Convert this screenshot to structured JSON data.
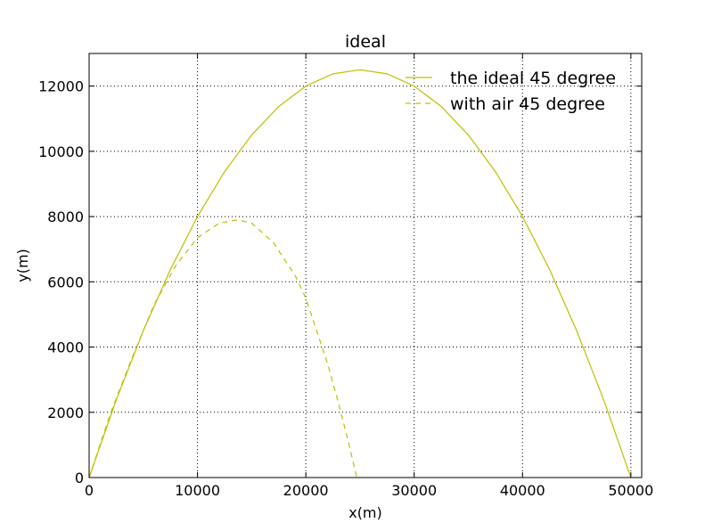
{
  "chart_data": {
    "type": "line",
    "title": "ideal",
    "xlabel": "x(m)",
    "ylabel": "y(m)",
    "xlim": [
      0,
      51000
    ],
    "ylim": [
      0,
      13000
    ],
    "xticks": [
      0,
      10000,
      20000,
      30000,
      40000,
      50000
    ],
    "yticks": [
      0,
      2000,
      4000,
      6000,
      8000,
      10000,
      12000
    ],
    "grid": true,
    "legend_position": "top-right",
    "series": [
      {
        "name": "the ideal 45 degree",
        "style": "solid",
        "color": "#bfbf00",
        "x": [
          0,
          2500,
          5000,
          7500,
          10000,
          12500,
          15000,
          17500,
          20000,
          22500,
          25000,
          27500,
          30000,
          32500,
          35000,
          37500,
          40000,
          42500,
          45000,
          47500,
          50000
        ],
        "y": [
          0,
          2375,
          4500,
          6375,
          8000,
          9375,
          10500,
          11375,
          12000,
          12375,
          12500,
          12375,
          12000,
          11375,
          10500,
          9375,
          8000,
          6375,
          4500,
          2375,
          0
        ]
      },
      {
        "name": "with air 45 degree",
        "style": "dashed",
        "color": "#bfbf00",
        "x": [
          0,
          2000,
          4000,
          6000,
          8000,
          10000,
          12000,
          13700,
          15000,
          17000,
          19000,
          20000,
          21000,
          22000,
          23000,
          24000,
          24700
        ],
        "y": [
          0,
          2000,
          3700,
          5300,
          6500,
          7350,
          7800,
          7900,
          7800,
          7200,
          6200,
          5500,
          4500,
          3500,
          2300,
          1000,
          0
        ]
      }
    ]
  }
}
